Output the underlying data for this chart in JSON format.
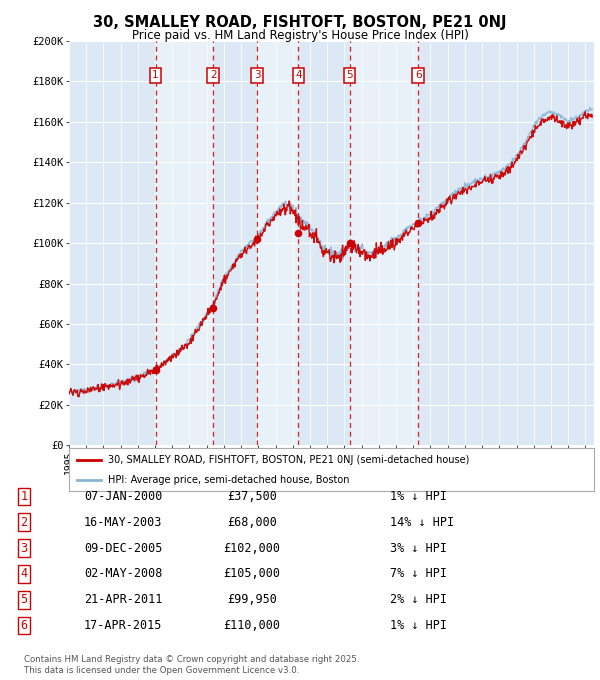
{
  "title": "30, SMALLEY ROAD, FISHTOFT, BOSTON, PE21 0NJ",
  "subtitle": "Price paid vs. HM Land Registry's House Price Index (HPI)",
  "x_start_year": 1995,
  "x_end_year": 2025,
  "y_min": 0,
  "y_max": 200000,
  "y_ticks": [
    0,
    20000,
    40000,
    60000,
    80000,
    100000,
    120000,
    140000,
    160000,
    180000,
    200000
  ],
  "y_tick_labels": [
    "£0",
    "£20K",
    "£40K",
    "£60K",
    "£80K",
    "£100K",
    "£120K",
    "£140K",
    "£160K",
    "£180K",
    "£200K"
  ],
  "transactions": [
    {
      "num": 1,
      "year": 2000.03,
      "price": 37500,
      "date": "07-JAN-2000",
      "pct": "1%"
    },
    {
      "num": 2,
      "year": 2003.37,
      "price": 68000,
      "date": "16-MAY-2003",
      "pct": "14%"
    },
    {
      "num": 3,
      "year": 2005.93,
      "price": 102000,
      "date": "09-DEC-2005",
      "pct": "3%"
    },
    {
      "num": 4,
      "year": 2008.33,
      "price": 105000,
      "date": "02-MAY-2008",
      "pct": "7%"
    },
    {
      "num": 5,
      "year": 2011.3,
      "price": 99950,
      "date": "21-APR-2011",
      "pct": "2%"
    },
    {
      "num": 6,
      "year": 2015.29,
      "price": 110000,
      "date": "17-APR-2015",
      "pct": "1%"
    }
  ],
  "legend_entries": [
    "30, SMALLEY ROAD, FISHTOFT, BOSTON, PE21 0NJ (semi-detached house)",
    "HPI: Average price, semi-detached house, Boston"
  ],
  "table_rows": [
    [
      "1",
      "07-JAN-2000",
      "£37,500",
      "1% ↓ HPI"
    ],
    [
      "2",
      "16-MAY-2003",
      "£68,000",
      "14% ↓ HPI"
    ],
    [
      "3",
      "09-DEC-2005",
      "£102,000",
      "3% ↓ HPI"
    ],
    [
      "4",
      "02-MAY-2008",
      "£105,000",
      "7% ↓ HPI"
    ],
    [
      "5",
      "21-APR-2011",
      "£99,950",
      "2% ↓ HPI"
    ],
    [
      "6",
      "17-APR-2015",
      "£110,000",
      "1% ↓ HPI"
    ]
  ],
  "footer": "Contains HM Land Registry data © Crown copyright and database right 2025.\nThis data is licensed under the Open Government Licence v3.0.",
  "bg_color": "#dce9f5",
  "hpi_color": "#8ab4d4",
  "price_color": "#cc0000",
  "dot_color": "#cc0000",
  "vline_color": "#cc0000"
}
